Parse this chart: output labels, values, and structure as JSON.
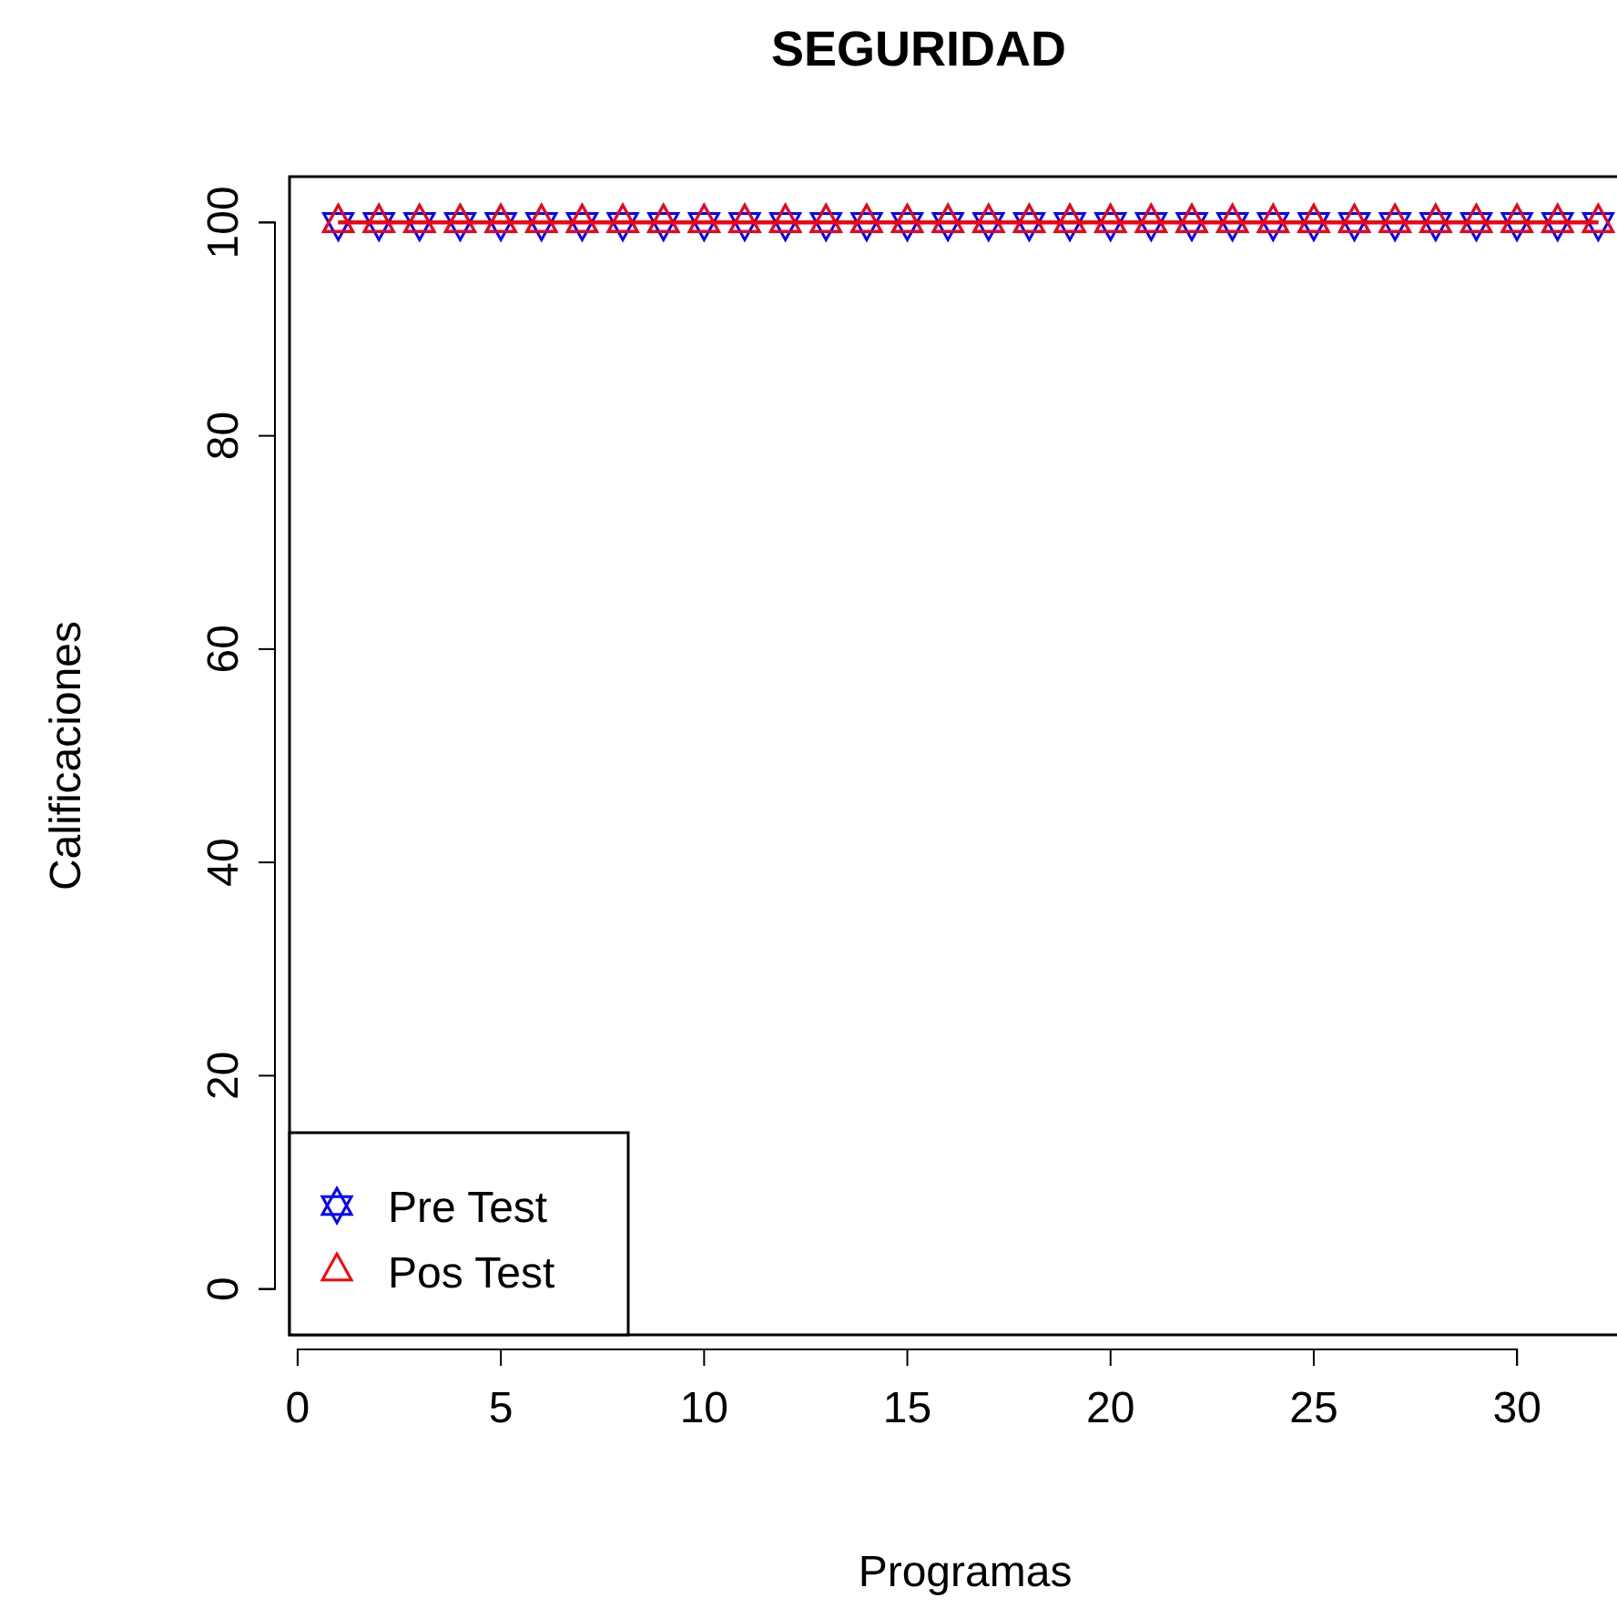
{
  "chart_data": {
    "type": "line",
    "title": "SEGURIDAD",
    "xlabel": "Programas",
    "ylabel": "Calificaciones",
    "x": [
      1,
      2,
      3,
      4,
      5,
      6,
      7,
      8,
      9,
      10,
      11,
      12,
      13,
      14,
      15,
      16,
      17,
      18,
      19,
      20,
      21,
      22,
      23,
      24,
      25,
      26,
      27,
      28,
      29,
      30,
      31,
      32
    ],
    "series": [
      {
        "name": "Pre Test",
        "color": "#0000ff",
        "marker": "star",
        "values": [
          100,
          100,
          100,
          100,
          100,
          100,
          100,
          100,
          100,
          100,
          100,
          100,
          100,
          100,
          100,
          100,
          100,
          100,
          100,
          100,
          100,
          100,
          100,
          100,
          100,
          100,
          100,
          100,
          100,
          100,
          100,
          100
        ]
      },
      {
        "name": "Pos Test",
        "color": "#ff0000",
        "marker": "triangle",
        "values": [
          100,
          100,
          100,
          100,
          100,
          100,
          100,
          100,
          100,
          100,
          100,
          100,
          100,
          100,
          100,
          100,
          100,
          100,
          100,
          100,
          100,
          100,
          100,
          100,
          100,
          100,
          100,
          100,
          100,
          100,
          100,
          100
        ]
      }
    ],
    "xlim": [
      -0.2,
      32.55
    ],
    "xticks": [
      0,
      5,
      10,
      15,
      20,
      25,
      30
    ],
    "ylim": [
      -4.3,
      104.3
    ],
    "yticks": [
      0,
      20,
      40,
      60,
      80,
      100
    ],
    "legend": "bottom left",
    "line_style": "solid",
    "grid": false
  }
}
